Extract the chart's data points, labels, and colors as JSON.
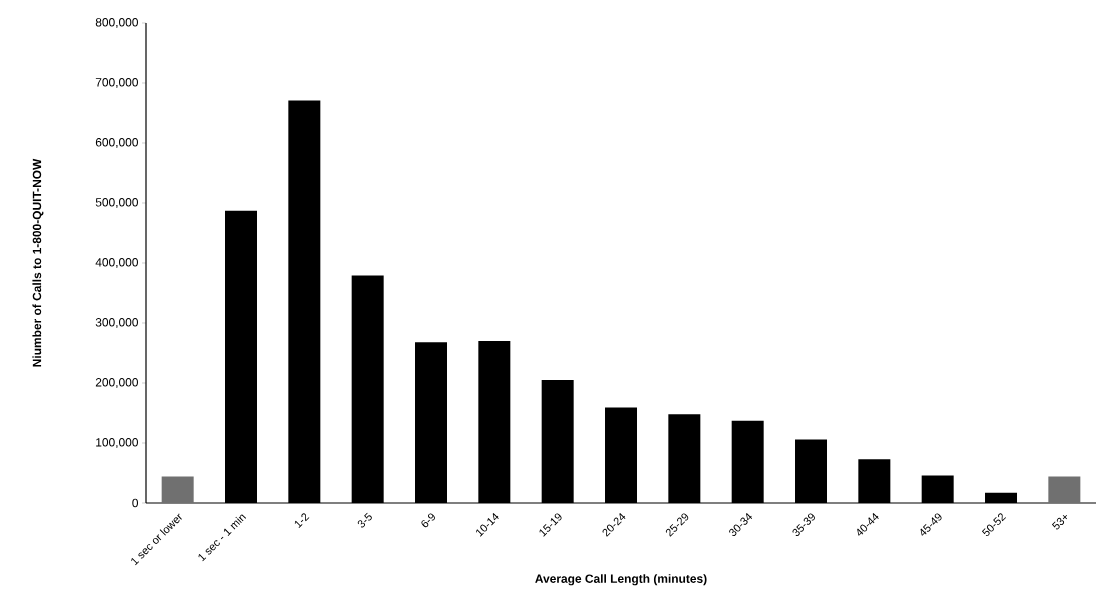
{
  "chart_data": {
    "type": "bar",
    "xlabel": "Average Call Length (minutes)",
    "ylabel": "Niumber of Calls to 1-800-QUIT-NOW",
    "categories": [
      "1 sec or lower",
      "1 sec - 1 min",
      "1-2",
      "3-5",
      "6-9",
      "10-14",
      "15-19",
      "20-24",
      "25-29",
      "30-34",
      "35-39",
      "40-44",
      "45-49",
      "50-52",
      "53+"
    ],
    "values": [
      44000,
      487000,
      671000,
      379000,
      268000,
      270000,
      205000,
      159000,
      148000,
      137000,
      106000,
      73000,
      46000,
      17000,
      44000
    ],
    "colors": [
      "#707070",
      "#000000",
      "#000000",
      "#000000",
      "#000000",
      "#000000",
      "#000000",
      "#000000",
      "#000000",
      "#000000",
      "#000000",
      "#000000",
      "#000000",
      "#000000",
      "#707070"
    ],
    "ylim": [
      0,
      800000
    ],
    "yticks": [
      {
        "value": 0,
        "label": "0"
      },
      {
        "value": 100000,
        "label": "100,000"
      },
      {
        "value": 200000,
        "label": "200,000"
      },
      {
        "value": 300000,
        "label": "300,000"
      },
      {
        "value": 400000,
        "label": "400,000"
      },
      {
        "value": 500000,
        "label": "500,000"
      },
      {
        "value": 600000,
        "label": "600,000"
      },
      {
        "value": 700000,
        "label": "700,000"
      },
      {
        "value": 800000,
        "label": "800,000"
      }
    ],
    "grid": false
  }
}
